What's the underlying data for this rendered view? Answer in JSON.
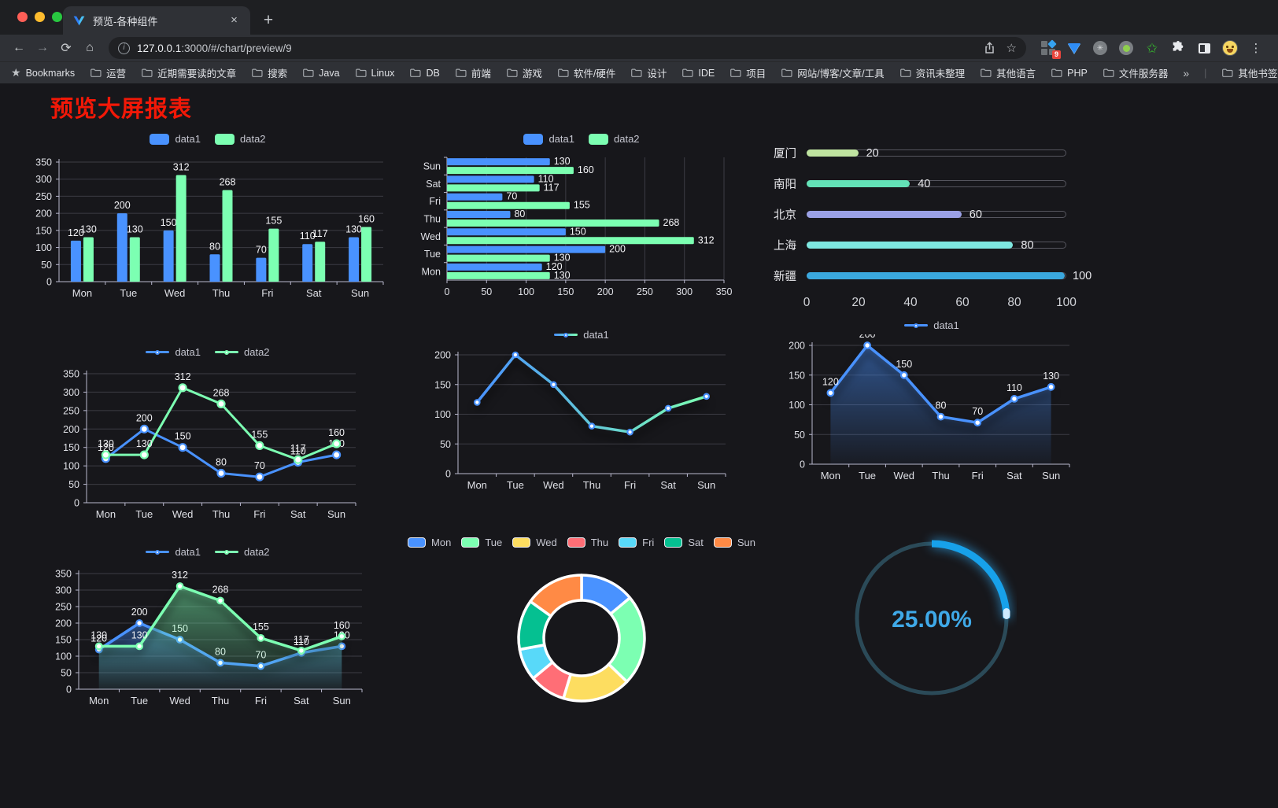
{
  "browser": {
    "tab": {
      "title": "预览-各种组件"
    },
    "url": {
      "host": "127.0.0.1",
      "rest": ":3000/#/chart/preview/9"
    },
    "icons": {
      "close": "×",
      "new_tab": "+",
      "back": "←",
      "forward": "→",
      "reload": "⟳",
      "home": "⌂",
      "info": "i",
      "star": "☆",
      "bookmarks_star": "★",
      "kebab": "⋮",
      "overflow": "»",
      "divider": "|",
      "green_star": "✩"
    },
    "extension_badge": "9",
    "bookmarks_label": "Bookmarks",
    "bookmarks": [
      "运营",
      "近期需要读的文章",
      "搜索",
      "Java",
      "Linux",
      "DB",
      "前端",
      "游戏",
      "软件/硬件",
      "设计",
      "IDE",
      "项目",
      "网站/博客/文章/工具",
      "资讯未整理",
      "其他语言",
      "PHP",
      "文件服务器"
    ],
    "other_bookmarks": "其他书签"
  },
  "page": {
    "title": "预览大屏报表",
    "title_color": "#f21807",
    "background": "#17171b"
  },
  "palette": {
    "blue": "#4992ff",
    "green": "#7cffb2",
    "yellow": "#fddd60",
    "red": "#ff6e76",
    "cyan": "#58d9f9",
    "teal": "#05c091",
    "orange": "#ff8a45"
  },
  "chart_data": [
    {
      "id": "bar-vertical",
      "type": "bar",
      "orientation": "vertical",
      "legend_position": "top",
      "grid": true,
      "value_labels": true,
      "categories": [
        "Mon",
        "Tue",
        "Wed",
        "Thu",
        "Fri",
        "Sat",
        "Sun"
      ],
      "series": [
        {
          "name": "data1",
          "color": "#4992ff",
          "values": [
            120,
            200,
            150,
            80,
            70,
            110,
            130
          ]
        },
        {
          "name": "data2",
          "color": "#7cffb2",
          "values": [
            130,
            130,
            312,
            268,
            155,
            117,
            160
          ]
        }
      ],
      "ylim": [
        0,
        350
      ],
      "ytick_step": 50
    },
    {
      "id": "bar-horizontal",
      "type": "bar",
      "orientation": "horizontal",
      "legend_position": "top",
      "grid": true,
      "value_labels": true,
      "categories": [
        "Mon",
        "Tue",
        "Wed",
        "Thu",
        "Fri",
        "Sat",
        "Sun"
      ],
      "series": [
        {
          "name": "data1",
          "color": "#4992ff",
          "values": [
            120,
            200,
            150,
            80,
            70,
            110,
            130
          ]
        },
        {
          "name": "data2",
          "color": "#7cffb2",
          "values": [
            130,
            130,
            312,
            268,
            155,
            117,
            160
          ]
        }
      ],
      "xlim": [
        0,
        350
      ],
      "xtick_step": 50
    },
    {
      "id": "progress-list",
      "type": "bar",
      "subtype": "progress",
      "grid": false,
      "categories": [
        "厦门",
        "南阳",
        "北京",
        "上海",
        "新疆"
      ],
      "values": [
        20,
        40,
        60,
        80,
        100
      ],
      "colors": [
        "#bfe3a0",
        "#63e2b7",
        "#9aa0e5",
        "#7ee7e0",
        "#3aa7dd"
      ],
      "xlim": [
        0,
        100
      ],
      "xticks": [
        0,
        20,
        40,
        60,
        80,
        100
      ]
    },
    {
      "id": "line-two",
      "type": "line",
      "legend_position": "top",
      "grid": true,
      "value_labels": true,
      "categories": [
        "Mon",
        "Tue",
        "Wed",
        "Thu",
        "Fri",
        "Sat",
        "Sun"
      ],
      "series": [
        {
          "name": "data1",
          "color": "#4992ff",
          "values": [
            120,
            200,
            150,
            80,
            70,
            110,
            130
          ]
        },
        {
          "name": "data2",
          "color": "#7cffb2",
          "values": [
            130,
            130,
            312,
            268,
            155,
            117,
            160
          ]
        }
      ],
      "ylim": [
        0,
        350
      ],
      "ytick_step": 50
    },
    {
      "id": "line-gradient",
      "type": "line",
      "legend_position": "top",
      "grid": true,
      "value_labels": false,
      "shadow": true,
      "categories": [
        "Mon",
        "Tue",
        "Wed",
        "Thu",
        "Fri",
        "Sat",
        "Sun"
      ],
      "series": [
        {
          "name": "data1",
          "color": "#4992ff",
          "gradient": [
            "#4992ff",
            "#7cffb2"
          ],
          "values": [
            120,
            200,
            150,
            80,
            70,
            110,
            130
          ]
        }
      ],
      "ylim": [
        0,
        200
      ],
      "ytick_step": 50
    },
    {
      "id": "area-single",
      "type": "area",
      "legend_position": "top",
      "grid": true,
      "value_labels": true,
      "categories": [
        "Mon",
        "Tue",
        "Wed",
        "Thu",
        "Fri",
        "Sat",
        "Sun"
      ],
      "series": [
        {
          "name": "data1",
          "color": "#4992ff",
          "area": true,
          "values": [
            120,
            200,
            150,
            80,
            70,
            110,
            130
          ]
        }
      ],
      "ylim": [
        0,
        200
      ],
      "ytick_step": 50
    },
    {
      "id": "area-two",
      "type": "area",
      "legend_position": "top",
      "grid": true,
      "value_labels": true,
      "categories": [
        "Mon",
        "Tue",
        "Wed",
        "Thu",
        "Fri",
        "Sat",
        "Sun"
      ],
      "series": [
        {
          "name": "data1",
          "color": "#4992ff",
          "area": true,
          "values": [
            120,
            200,
            150,
            80,
            70,
            110,
            130
          ]
        },
        {
          "name": "data2",
          "color": "#7cffb2",
          "area": true,
          "values": [
            130,
            130,
            312,
            268,
            155,
            117,
            160
          ]
        }
      ],
      "ylim": [
        0,
        350
      ],
      "ytick_step": 50
    },
    {
      "id": "donut",
      "type": "pie",
      "legend_position": "top",
      "inner_radius_ratio": 0.6,
      "border_color": "#ffffff",
      "categories": [
        "Mon",
        "Tue",
        "Wed",
        "Thu",
        "Fri",
        "Sat",
        "Sun"
      ],
      "values": [
        120,
        200,
        150,
        80,
        70,
        110,
        130
      ],
      "colors": [
        "#4992ff",
        "#7cffb2",
        "#fddd60",
        "#ff6e76",
        "#58d9f9",
        "#05c091",
        "#ff8a45"
      ]
    },
    {
      "id": "gauge",
      "type": "gauge",
      "value": 25,
      "max": 100,
      "label": "25.00%",
      "track_color": "#2b4a58",
      "progress_color": "#17a1ea",
      "tip_color": "#cfeafd",
      "text_color": "#3fa9e8"
    }
  ]
}
